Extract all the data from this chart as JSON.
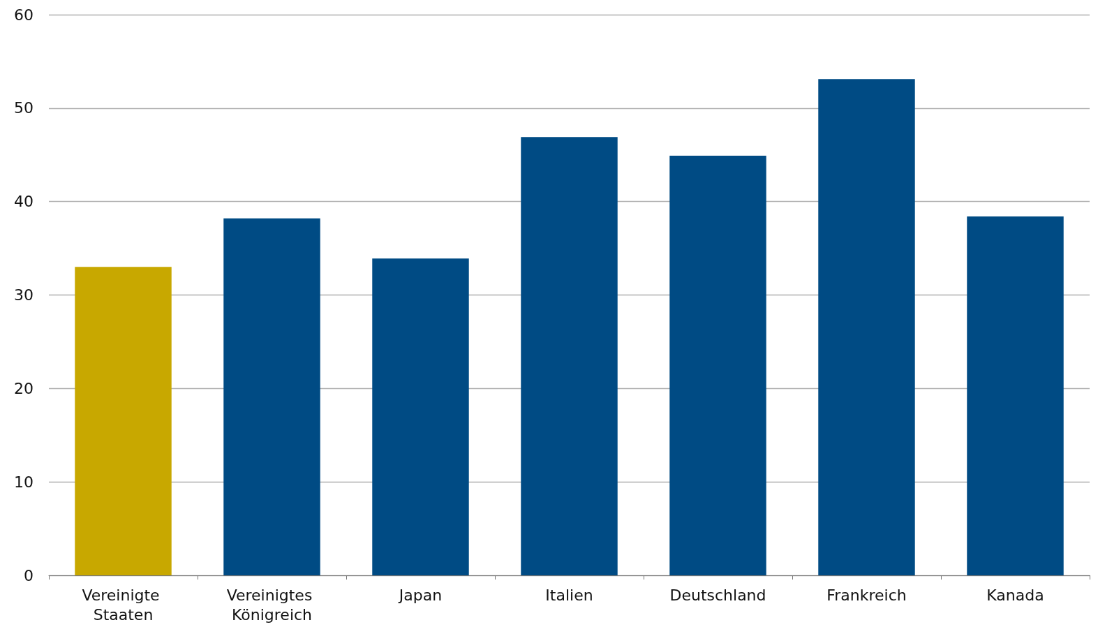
{
  "chart_data": {
    "type": "bar",
    "categories": [
      "Vereinigte Staaten",
      "Vereinigtes Königreich",
      "Japan",
      "Italien",
      "Deutschland",
      "Frankreich",
      "Kanada"
    ],
    "values": [
      33,
      38.2,
      33.9,
      46.9,
      44.9,
      53.1,
      38.4
    ],
    "colors": [
      "#c8a800",
      "#004b84",
      "#004b84",
      "#004b84",
      "#004b84",
      "#004b84",
      "#004b84"
    ],
    "ylim": [
      0,
      60
    ],
    "yticks": [
      0,
      10,
      20,
      30,
      40,
      50,
      60
    ],
    "grid": "y"
  }
}
